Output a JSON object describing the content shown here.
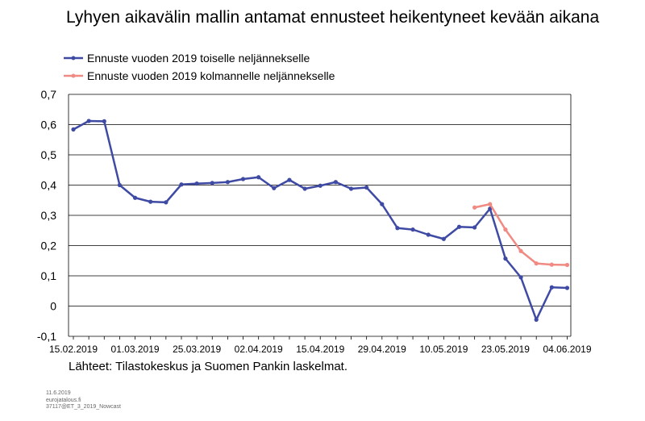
{
  "title": "Lyhyen aikavälin mallin antamat ennusteet heikentyneet kevään aikana",
  "source": "Lähteet: Tilastokeskus ja Suomen Pankin laskelmat.",
  "footnote": [
    "11.6.2019",
    "eurojatalous.fi",
    "37117@ET_3_2019_Nowcast"
  ],
  "colors": {
    "series1": "#3e4aa3",
    "series2": "#f08a82",
    "grid": "#000000"
  },
  "chart_data": {
    "type": "line",
    "title": "Lyhyen aikavälin mallin antamat ennusteet heikentyneet kevään aikana",
    "xlabel": "",
    "ylabel": "",
    "ylim": [
      -0.1,
      0.7
    ],
    "yticks": [
      "0,7",
      "0,6",
      "0,5",
      "0,4",
      "0,3",
      "0,2",
      "0,1",
      "0",
      "-0,1"
    ],
    "ytick_values": [
      0.7,
      0.6,
      0.5,
      0.4,
      0.3,
      0.2,
      0.1,
      0,
      -0.1
    ],
    "xticks": [
      "15.02.2019",
      "01.03.2019",
      "25.03.2019",
      "02.04.2019",
      "15.04.2019",
      "29.04.2019",
      "10.05.2019",
      "23.05.2019",
      "04.06.2019"
    ],
    "xtick_index": [
      0,
      4,
      8,
      12,
      16,
      20,
      24,
      28,
      32
    ],
    "grid": true,
    "legend_placement": "top-left",
    "series": [
      {
        "name": "Ennuste vuoden 2019 toiselle neljännekselle",
        "start_index": 0,
        "values": [
          0.584,
          0.612,
          0.611,
          0.4,
          0.358,
          0.345,
          0.343,
          0.402,
          0.405,
          0.407,
          0.41,
          0.42,
          0.426,
          0.39,
          0.417,
          0.388,
          0.398,
          0.41,
          0.388,
          0.392,
          0.337,
          0.258,
          0.253,
          0.236,
          0.222,
          0.262,
          0.26,
          0.322,
          0.157,
          0.095,
          -0.045,
          0.062,
          0.06
        ]
      },
      {
        "name": "Ennuste vuoden 2019 kolmannelle neljännekselle",
        "start_index": 26,
        "values": [
          0.326,
          0.337,
          0.253,
          0.182,
          0.141,
          0.137,
          0.136
        ]
      }
    ]
  }
}
